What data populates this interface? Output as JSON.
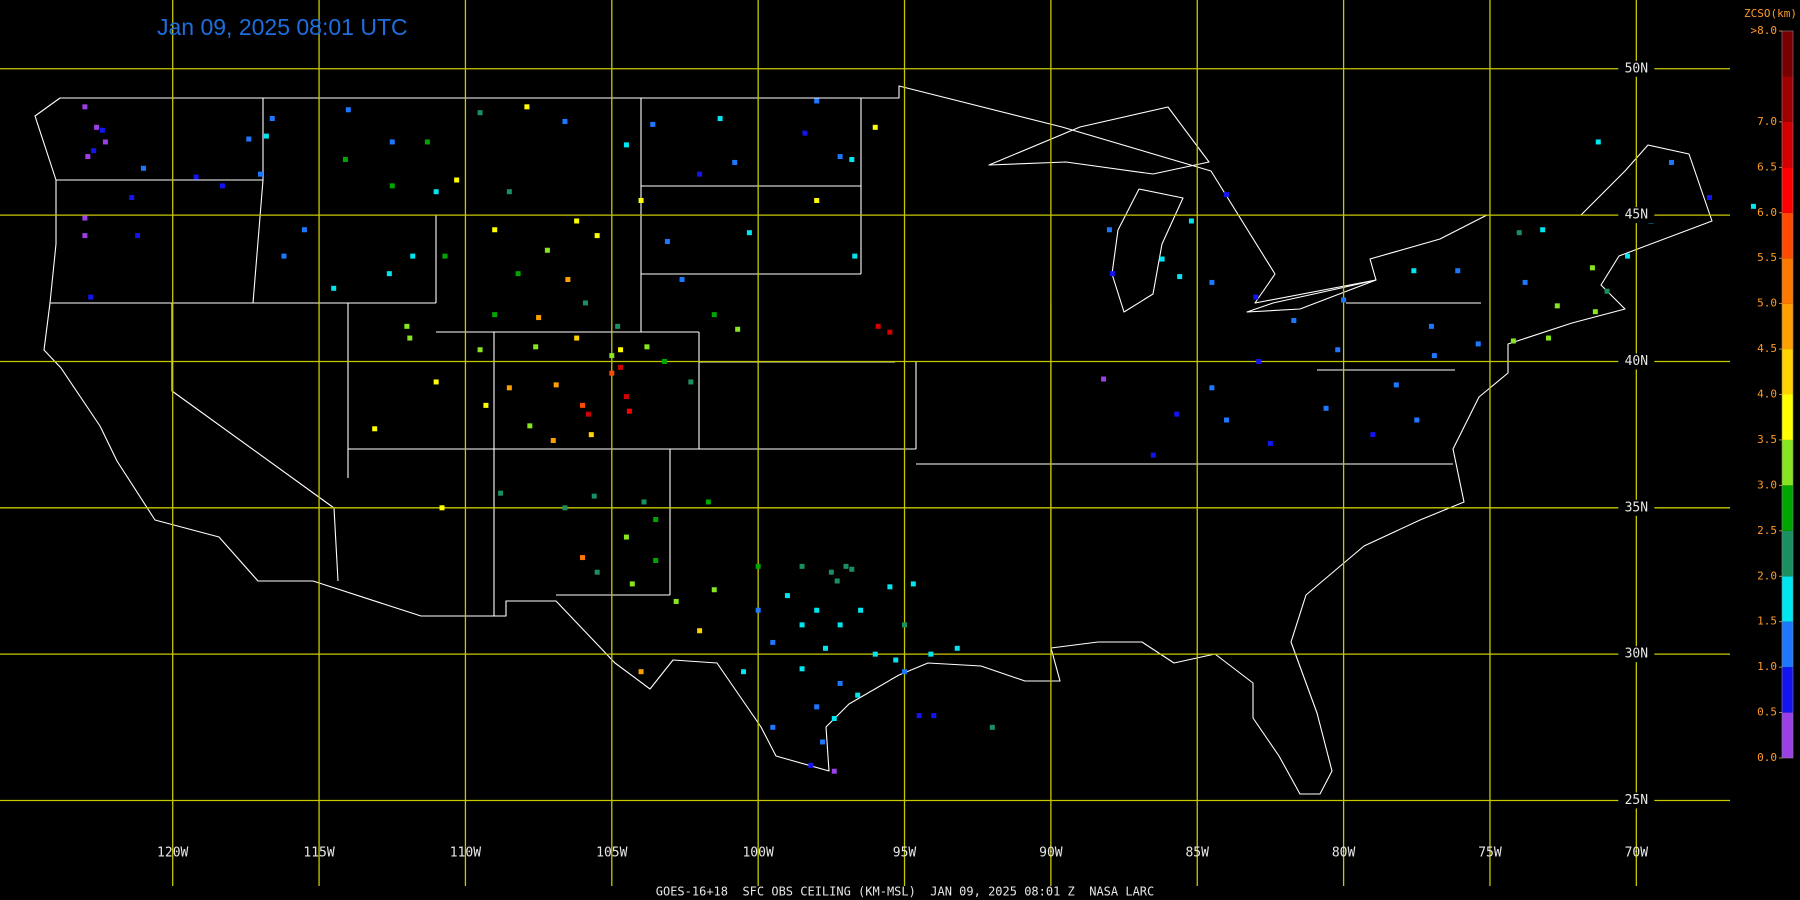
{
  "title": "Jan 09, 2025 08:01 UTC",
  "footer": "GOES-16+18  SFC OBS CEILING (KM-MSL)  JAN 09, 2025 08:01 Z  NASA LARC",
  "map": {
    "xlim": [
      -125.9,
      -66.8
    ],
    "ylim": [
      52.35,
      21.6
    ],
    "grid_color": "#c8c800",
    "xticks": [
      {
        "value": -120,
        "label": "120W"
      },
      {
        "value": -115,
        "label": "115W"
      },
      {
        "value": -110,
        "label": "110W"
      },
      {
        "value": -105,
        "label": "105W"
      },
      {
        "value": -100,
        "label": "100W"
      },
      {
        "value": -95,
        "label": "95W"
      },
      {
        "value": -90,
        "label": "90W"
      },
      {
        "value": -85,
        "label": "85W"
      },
      {
        "value": -80,
        "label": "80W"
      },
      {
        "value": -75,
        "label": "75W"
      },
      {
        "value": -70,
        "label": "70W"
      }
    ],
    "yticks": [
      {
        "value": 50,
        "label": "50N"
      },
      {
        "value": 45,
        "label": "45N"
      },
      {
        "value": 40,
        "label": "40N"
      },
      {
        "value": 35,
        "label": "35N"
      },
      {
        "value": 30,
        "label": "30N"
      },
      {
        "value": 25,
        "label": "25N"
      }
    ]
  },
  "colorbar": {
    "title": "ZCSO(km)",
    "lim": [
      0,
      8
    ],
    "step": 0.5,
    "colors": [
      "#9a40e6",
      "#1414f0",
      "#1e78ff",
      "#00e6f0",
      "#1a9060",
      "#00a600",
      "#88e620",
      "#ffff00",
      "#ffd200",
      "#ffa000",
      "#ff7800",
      "#ff4a00",
      "#ff0000",
      "#d20000",
      "#a00000",
      "#780000"
    ],
    "ticks": [
      {
        "value": 0,
        "label": "0.0"
      },
      0.5,
      {
        "value": 1,
        "label": "1.0"
      },
      1.5,
      {
        "value": 2,
        "label": "2.0"
      },
      2.5,
      {
        "value": 3,
        "label": "3.0"
      },
      3.5,
      {
        "value": 4,
        "label": "4.0"
      },
      4.5,
      {
        "value": 5,
        "label": "5.0"
      },
      5.5,
      {
        "value": 6,
        "label": "6.0"
      },
      6.5,
      {
        "value": 7,
        "label": "7.0"
      },
      {
        "value": 8,
        "label": ">8.0"
      }
    ]
  },
  "stations": {
    "lon": [
      -122.3,
      -122.6,
      -122.9,
      -123.0,
      -122.7,
      -122.4,
      -121.0,
      -119.2,
      -118.3,
      -117.4,
      -116.6,
      -117.0,
      -116.8,
      -123.0,
      -123.0,
      -121.4,
      -121.2,
      -122.8,
      -114.0,
      -112.5,
      -111.3,
      -110.3,
      -108.5,
      -112.5,
      -114.1,
      -109.5,
      -106.6,
      -104.5,
      -111.0,
      -107.9,
      -116.2,
      -114.5,
      -112.6,
      -111.8,
      -115.5,
      -109.0,
      -108.2,
      -106.5,
      -107.5,
      -105.5,
      -104.8,
      -106.2,
      -110.7,
      -109.0,
      -105.9,
      -107.2,
      -111.9,
      -112.0,
      -111.0,
      -113.1,
      -109.5,
      -109.3,
      -104.7,
      -105.0,
      -104.5,
      -106.9,
      -106.0,
      -107.0,
      -108.5,
      -107.8,
      -104.4,
      -103.2,
      -102.3,
      -105.7,
      -106.2,
      -107.6,
      -104.7,
      -105.0,
      -103.8,
      -105.8,
      -103.6,
      -101.3,
      -100.8,
      -98.4,
      -97.2,
      -96.8,
      -98.0,
      -100.3,
      -103.1,
      -96.7,
      -102.6,
      -101.5,
      -100.7,
      -102.0,
      -104.0,
      -98.0,
      -96.0,
      -95.9,
      -95.5,
      -110.8,
      -108.8,
      -106.6,
      -105.6,
      -106.0,
      -104.5,
      -103.5,
      -104.3,
      -102.8,
      -101.5,
      -103.9,
      -101.7,
      -105.5,
      -103.5,
      -102.0,
      -104.0,
      -97.0,
      -97.5,
      -96.8,
      -97.3,
      -98.5,
      -99.0,
      -98.0,
      -97.2,
      -96.5,
      -98.5,
      -100.0,
      -99.5,
      -98.5,
      -97.7,
      -96.0,
      -95.3,
      -95.0,
      -94.1,
      -93.2,
      -97.4,
      -97.8,
      -98.2,
      -97.4,
      -99.5,
      -100.5,
      -96.6,
      -95.5,
      -94.7,
      -100.0,
      -97.2,
      -98.0,
      -95.0,
      -92.0,
      -94.0,
      -87.9,
      -88.0,
      -85.6,
      -84.5,
      -83.0,
      -85.2,
      -86.2,
      -84.0,
      -81.7,
      -82.9,
      -84.5,
      -80.2,
      -77.6,
      -76.1,
      -73.8,
      -75.4,
      -76.9,
      -74.2,
      -73.0,
      -72.7,
      -71.4,
      -71.0,
      -71.5,
      -70.3,
      -69.5,
      -68.8,
      -73.2,
      -74.0,
      -79.0,
      -80.6,
      -82.5,
      -85.7,
      -86.5,
      -84.0,
      -78.2,
      -77.5,
      -80.0,
      -77.0,
      -66.0,
      -71.3,
      -67.5,
      -88.2,
      -94.5
    ],
    "lat": [
      47.5,
      48.0,
      47.0,
      48.7,
      47.2,
      47.9,
      46.6,
      46.3,
      46.0,
      47.6,
      48.3,
      46.4,
      47.7,
      44.3,
      44.9,
      45.6,
      44.3,
      42.2,
      48.6,
      47.5,
      47.5,
      46.2,
      45.8,
      46.0,
      46.9,
      48.5,
      48.2,
      47.4,
      45.8,
      48.7,
      43.6,
      42.5,
      43.0,
      43.6,
      44.5,
      44.5,
      43.0,
      42.8,
      41.5,
      44.3,
      41.2,
      44.8,
      43.6,
      41.6,
      42.0,
      43.8,
      40.8,
      41.2,
      39.3,
      37.7,
      40.4,
      38.5,
      39.8,
      39.6,
      38.8,
      39.2,
      38.5,
      37.3,
      39.1,
      37.8,
      38.3,
      40.0,
      39.3,
      37.5,
      40.8,
      40.5,
      40.4,
      40.2,
      40.5,
      38.2,
      48.1,
      48.3,
      46.8,
      47.8,
      47.0,
      46.9,
      45.5,
      44.4,
      44.1,
      43.6,
      42.8,
      41.6,
      41.1,
      46.4,
      45.5,
      48.9,
      48.0,
      41.2,
      41.0,
      35.0,
      35.5,
      35.0,
      35.4,
      33.3,
      34.0,
      33.2,
      32.4,
      31.8,
      32.2,
      35.2,
      35.2,
      32.8,
      34.6,
      30.8,
      29.4,
      33.0,
      32.8,
      32.9,
      32.5,
      33.0,
      32.0,
      31.5,
      31.0,
      31.5,
      31.0,
      31.5,
      30.4,
      29.5,
      30.2,
      30.0,
      29.8,
      29.4,
      30.0,
      30.2,
      27.8,
      27.0,
      26.2,
      26.0,
      27.5,
      29.4,
      28.6,
      32.3,
      32.4,
      33.0,
      29.0,
      28.2,
      31.0,
      27.5,
      27.9,
      43.0,
      44.5,
      42.9,
      42.7,
      42.2,
      44.8,
      43.5,
      45.7,
      41.4,
      40.0,
      39.1,
      40.4,
      43.1,
      43.1,
      42.7,
      40.6,
      40.2,
      40.7,
      40.8,
      41.9,
      41.7,
      42.4,
      43.2,
      43.6,
      44.8,
      46.8,
      44.5,
      44.4,
      37.5,
      38.4,
      37.2,
      38.2,
      36.8,
      38.0,
      39.2,
      38.0,
      42.1,
      41.2,
      45.3,
      47.5,
      45.6,
      39.4,
      27.9
    ],
    "ceiling": [
      0.3,
      0.3,
      0.3,
      0.3,
      0.8,
      0.8,
      1.0,
      0.8,
      0.8,
      1.2,
      1.3,
      1.0,
      1.6,
      0.3,
      0.3,
      0.8,
      0.8,
      0.8,
      1.0,
      1.0,
      2.8,
      3.8,
      2.4,
      2.8,
      2.6,
      2.0,
      1.4,
      1.6,
      1.7,
      3.8,
      1.4,
      1.5,
      1.8,
      1.6,
      1.2,
      3.8,
      2.6,
      4.5,
      4.5,
      3.8,
      2.4,
      3.6,
      2.6,
      2.6,
      2.2,
      3.2,
      3.0,
      3.2,
      3.6,
      3.6,
      3.4,
      3.6,
      6.5,
      5.8,
      6.5,
      4.5,
      5.5,
      4.5,
      4.6,
      3.2,
      6.2,
      2.8,
      2.4,
      4.0,
      4.0,
      3.4,
      3.8,
      3.4,
      3.0,
      6.5,
      1.1,
      1.6,
      1.1,
      0.8,
      1.1,
      1.6,
      3.8,
      1.6,
      1.3,
      1.6,
      1.3,
      2.6,
      3.0,
      0.8,
      3.8,
      1.1,
      3.8,
      6.5,
      6.5,
      3.8,
      2.4,
      2.4,
      2.4,
      5.0,
      3.2,
      2.6,
      3.0,
      3.2,
      3.0,
      2.0,
      2.6,
      2.2,
      2.6,
      4.2,
      4.6,
      2.2,
      2.0,
      2.2,
      2.4,
      2.2,
      1.8,
      1.8,
      1.7,
      1.7,
      1.7,
      1.2,
      1.2,
      1.7,
      1.7,
      1.6,
      1.7,
      1.2,
      1.7,
      1.7,
      1.6,
      1.2,
      0.8,
      0.3,
      1.2,
      1.5,
      1.7,
      1.8,
      1.7,
      2.6,
      1.2,
      1.0,
      2.2,
      2.4,
      0.8,
      0.8,
      1.2,
      1.7,
      1.2,
      0.8,
      1.6,
      1.7,
      0.8,
      1.2,
      0.8,
      1.2,
      1.2,
      1.6,
      1.2,
      1.2,
      1.2,
      1.2,
      3.0,
      3.2,
      3.2,
      3.0,
      2.2,
      3.2,
      1.6,
      1.6,
      1.2,
      1.6,
      2.4,
      0.8,
      1.2,
      0.8,
      0.8,
      0.8,
      1.2,
      1.2,
      1.2,
      1.2,
      1.2,
      1.7,
      1.7,
      0.8,
      0.3,
      0.8
    ]
  }
}
